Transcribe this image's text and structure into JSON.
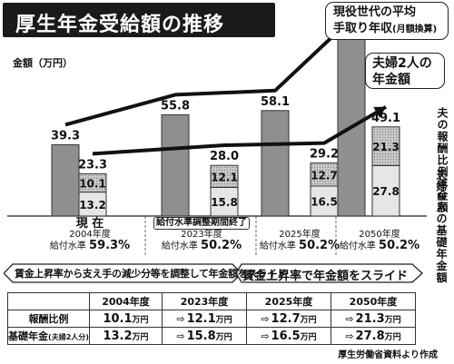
{
  "title": "厚生年金受給額の推移",
  "y_axis_label": "金額（万円）",
  "callouts": {
    "worker_line1": "現役世代の平均",
    "worker_line2": "手取り年収",
    "worker_note": "(月額換算)",
    "couple_line1": "夫婦2人の",
    "couple_line2": "年金額"
  },
  "side_labels": {
    "hourei": "夫の報酬比例年金額",
    "kiso": "夫婦2人の基礎年金額"
  },
  "x_labels": [
    {
      "head": "現 在",
      "year": "2004年度",
      "rate_label": "給付水準",
      "rate": "59.3%"
    },
    {
      "head": "給付水準調整期間終了",
      "year": "2023年度",
      "rate_label": "給付水準",
      "rate": "50.2%"
    },
    {
      "head": "",
      "year": "2025年度",
      "rate_label": "給付水準",
      "rate": "50.2%"
    },
    {
      "head": "",
      "year": "2050年度",
      "rate_label": "給付水準",
      "rate": "50.2%"
    }
  ],
  "banner": {
    "left": "賃金上昇率から支え手の減少分等を調整して年金額をスライド",
    "right": "賃金上昇率で年金額をスライド"
  },
  "table": {
    "headers": [
      "2004年度",
      "2023年度",
      "2025年度",
      "2050年度"
    ],
    "unit": "万円",
    "rows": [
      {
        "label": "報酬比例",
        "sub": "",
        "values": [
          "10.1",
          "12.1",
          "12.7",
          "21.3"
        ]
      },
      {
        "label": "基礎年金",
        "sub": "(夫婦2人分)",
        "values": [
          "13.2",
          "15.8",
          "16.5",
          "27.8"
        ]
      }
    ]
  },
  "source": "厚生労働省資料より作成",
  "colors": {
    "worker_bar": "#8f8f8f",
    "hourei_fill": "#c8c8c8",
    "kiso_fill": "#e6e6e6",
    "line": "#111111"
  },
  "chart_data": {
    "type": "bar",
    "title": "厚生年金受給額の推移",
    "ylabel": "金額（万円）",
    "categories": [
      "2004年度",
      "2023年度",
      "2025年度",
      "2050年度"
    ],
    "ylim": [
      0,
      100
    ],
    "series": [
      {
        "name": "現役世代の平均手取り年収（月額換算）",
        "values": [
          39.3,
          55.8,
          58.1,
          97.7
        ]
      },
      {
        "name": "夫の報酬比例年金額",
        "values": [
          10.1,
          12.1,
          12.7,
          21.3
        ]
      },
      {
        "name": "夫婦2人の基礎年金額",
        "values": [
          13.2,
          15.8,
          16.5,
          27.8
        ]
      },
      {
        "name": "夫婦2人の年金額",
        "values": [
          23.3,
          28.0,
          29.2,
          49.1
        ]
      }
    ]
  }
}
